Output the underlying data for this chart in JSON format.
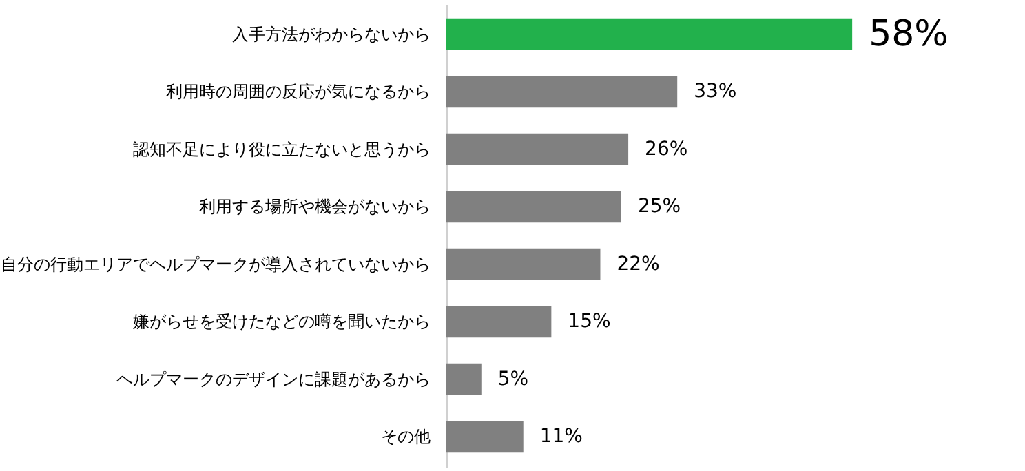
{
  "chart_data": {
    "type": "bar",
    "orientation": "horizontal",
    "categories": [
      "入手方法がわからないから",
      "利用時の周囲の反応が気になるから",
      "認知不足により役に立たないと思うから",
      "利用する場所や機会がないから",
      "自分の行動エリアでヘルプマークが導入されていないから",
      "嫌がらせを受けたなどの噂を聞いたから",
      "ヘルプマークのデザインに課題があるから",
      "その他"
    ],
    "values": [
      58,
      33,
      26,
      25,
      22,
      15,
      5,
      11
    ],
    "colors": [
      "#22b14c",
      "#808080",
      "#808080",
      "#808080",
      "#808080",
      "#808080",
      "#808080",
      "#808080"
    ],
    "value_labels": [
      "58%",
      "33%",
      "26%",
      "25%",
      "22%",
      "15%",
      "5%",
      "11%"
    ]
  }
}
